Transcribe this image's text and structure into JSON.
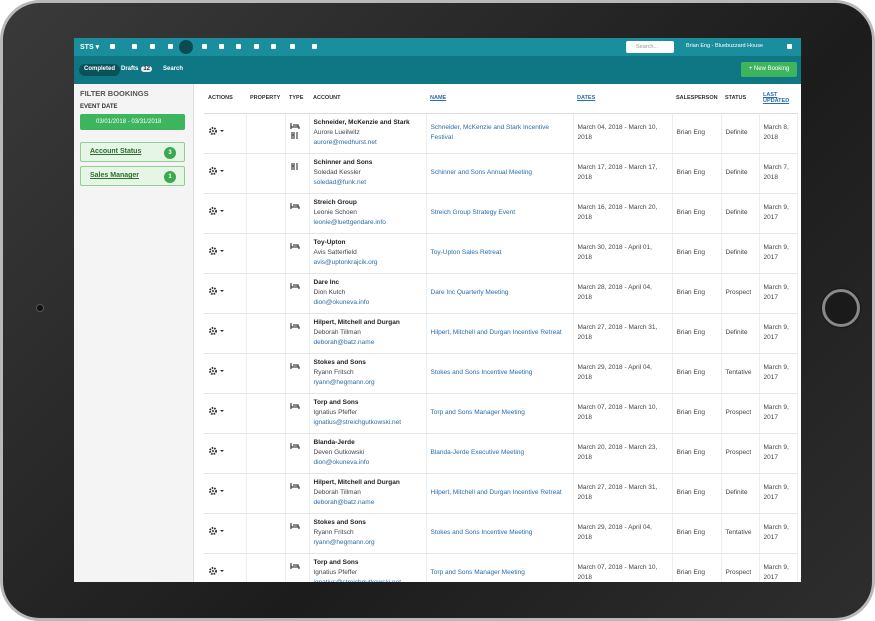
{
  "nav": {
    "brand": "STS",
    "search_placeholder": "Search...",
    "user": "Brian Eng - Bluebuzzard House"
  },
  "tabs": [
    {
      "label": "Completed"
    },
    {
      "label": "Drafts",
      "count": "12"
    },
    {
      "label": "Search"
    }
  ],
  "new_booking": "+ New Booking",
  "sidebar": {
    "title": "FILTER BOOKINGS",
    "event_date_label": "EVENT DATE",
    "date_range": "03/01/2018 - 03/31/2018",
    "filters": [
      {
        "label": "Account Status",
        "count": "3"
      },
      {
        "label": "Sales Manager",
        "count": "1"
      }
    ]
  },
  "table": {
    "headers": [
      "ACTIONS",
      "PROPERTY",
      "TYPE",
      "ACCOUNT",
      "NAME",
      "DATES",
      "SALESPERSON",
      "STATUS",
      "LAST UPDATED"
    ],
    "rows": [
      {
        "account": "Schneider, McKenzie and Stark",
        "contact": "Aurore Lueilwitz",
        "email": "aurore@medhurst.net",
        "name": "Schneider, McKenzie and Stark Incentive Festival",
        "dates": "March 04, 2018 - March 10, 2018",
        "salesperson": "Brian Eng",
        "status": "Definite",
        "last_updated": "March 8, 2018"
      },
      {
        "account": "Schinner and Sons",
        "contact": "Soledad Kessler",
        "email": "soledad@funk.net",
        "name": "Schinner and Sons Annual Meeting",
        "dates": "March 17, 2018 - March 17, 2018",
        "salesperson": "Brian Eng",
        "status": "Definite",
        "last_updated": "March 7, 2018"
      },
      {
        "account": "Streich Group",
        "contact": "Leonie Schoen",
        "email": "leonie@luettgendare.info",
        "name": "Streich Group Strategy Event",
        "dates": "March 16, 2018 - March 20, 2018",
        "salesperson": "Brian Eng",
        "status": "Definite",
        "last_updated": "March 9, 2017"
      },
      {
        "account": "Toy-Upton",
        "contact": "Avis Satterfield",
        "email": "avis@uptonkrajcik.org",
        "name": "Toy-Upton Sales Retreat",
        "dates": "March 30, 2018 - April 01, 2018",
        "salesperson": "Brian Eng",
        "status": "Definite",
        "last_updated": "March 9, 2017"
      },
      {
        "account": "Dare Inc",
        "contact": "Dion Kutch",
        "email": "dion@okuneva.info",
        "name": "Dare Inc Quarterly Meeting",
        "dates": "March 28, 2018 - April 04, 2018",
        "salesperson": "Brian Eng",
        "status": "Prospect",
        "last_updated": "March 9, 2017"
      },
      {
        "account": "Hilpert, Mitchell and Durgan",
        "contact": "Deborah Tillman",
        "email": "deborah@batz.name",
        "name": "Hilpert, Mitchell and Durgan Incentive Retreat",
        "dates": "March 27, 2018 - March 31, 2018",
        "salesperson": "Brian Eng",
        "status": "Definite",
        "last_updated": "March 9, 2017"
      },
      {
        "account": "Stokes and Sons",
        "contact": "Ryann Fritsch",
        "email": "ryann@hegmann.org",
        "name": "Stokes and Sons Incentive Meeting",
        "dates": "March 29, 2018 - April 04, 2018",
        "salesperson": "Brian Eng",
        "status": "Tentative",
        "last_updated": "March 9, 2017"
      },
      {
        "account": "Torp and Sons",
        "contact": "Ignatius Pfeffer",
        "email": "ignatius@streichgutkowski.net",
        "name": "Torp and Sons Manager Meeting",
        "dates": "March 07, 2018 - March 10, 2018",
        "salesperson": "Brian Eng",
        "status": "Prospect",
        "last_updated": "March 9, 2017"
      },
      {
        "account": "Blanda-Jerde",
        "contact": "Deven Gutkowski",
        "email": "dion@okuneva.info",
        "name": "Blanda-Jerde Executive Meeting",
        "dates": "March 20, 2018 - March 23, 2018",
        "salesperson": "Brian Eng",
        "status": "Prospect",
        "last_updated": "March 9, 2017"
      },
      {
        "account": "Hilpert, Mitchell and Durgan",
        "contact": "Deborah Tillman",
        "email": "deborah@batz.name",
        "name": "Hilpert, Mitchell and Durgan Incentive Retreat",
        "dates": "March 27, 2018 - March 31, 2018",
        "salesperson": "Brian Eng",
        "status": "Definite",
        "last_updated": "March 9, 2017"
      },
      {
        "account": "Stokes and Sons",
        "contact": "Ryann Fritsch",
        "email": "ryann@hegmann.org",
        "name": "Stokes and Sons Incentive Meeting",
        "dates": "March 29, 2018 - April 04, 2018",
        "salesperson": "Brian Eng",
        "status": "Tentative",
        "last_updated": "March 9, 2017"
      },
      {
        "account": "Torp and Sons",
        "contact": "Ignatius Pfeffer",
        "email": "ignatius@streichgutkowski.net",
        "name": "Torp and Sons Manager Meeting",
        "dates": "March 07, 2018 - March 10, 2018",
        "salesperson": "Brian Eng",
        "status": "Prospect",
        "last_updated": "March 9, 2017"
      }
    ]
  }
}
